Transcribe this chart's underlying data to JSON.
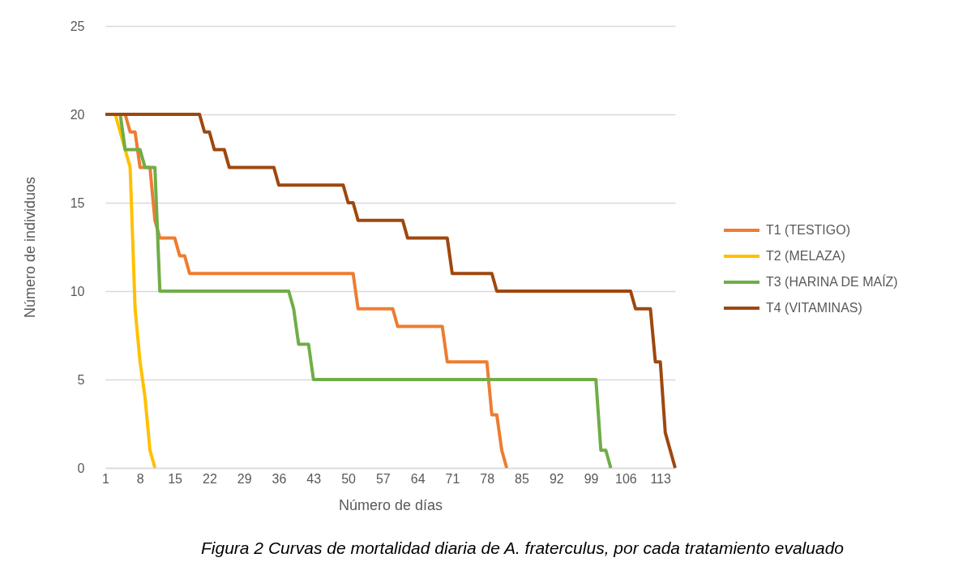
{
  "chart_data": {
    "type": "line",
    "xlabel": "Número de días",
    "ylabel": "Número de individuos",
    "xlim": [
      1,
      116
    ],
    "xticks": [
      1,
      8,
      15,
      22,
      29,
      36,
      43,
      50,
      57,
      64,
      71,
      78,
      85,
      92,
      99,
      106,
      113
    ],
    "ylim": [
      0,
      25
    ],
    "yticks": [
      0,
      5,
      10,
      15,
      20,
      25
    ],
    "grid": "y",
    "legend": "right",
    "annotations": [
      "Figura 2 Curvas de mortalidad diaria de A. fraterculus, por cada tratamiento evaluado"
    ],
    "series": [
      {
        "name": "T1 (TESTIGO)",
        "color": "#ed7d31",
        "x": [
          1,
          5,
          6,
          7,
          8,
          10,
          11,
          12,
          15,
          16,
          17,
          18,
          51,
          52,
          59,
          60,
          69,
          70,
          78,
          79,
          80,
          81,
          82
        ],
        "values": [
          20,
          20,
          19,
          19,
          17,
          17,
          14,
          13,
          13,
          12,
          12,
          11,
          11,
          9,
          9,
          8,
          8,
          6,
          6,
          3,
          3,
          1,
          0
        ]
      },
      {
        "name": "T2 (MELAZA)",
        "color": "#ffc000",
        "x": [
          1,
          3,
          4,
          5,
          6,
          7,
          8,
          9,
          10,
          11
        ],
        "values": [
          20,
          20,
          19,
          18,
          17,
          9,
          6,
          4,
          1,
          0
        ]
      },
      {
        "name": "T3 (HARINA DE MAÍZ)",
        "color": "#70ad47",
        "x": [
          1,
          4,
          5,
          8,
          9,
          11,
          12,
          38,
          39,
          40,
          42,
          43,
          100,
          101,
          102,
          103
        ],
        "values": [
          20,
          20,
          18,
          18,
          17,
          17,
          10,
          10,
          9,
          7,
          7,
          5,
          5,
          1,
          1,
          0
        ]
      },
      {
        "name": "T4 (VITAMINAS)",
        "color": "#9e480e",
        "x": [
          1,
          20,
          21,
          22,
          23,
          25,
          26,
          35,
          36,
          49,
          50,
          51,
          52,
          61,
          62,
          70,
          71,
          79,
          80,
          107,
          108,
          111,
          112,
          113,
          114,
          116
        ],
        "values": [
          20,
          20,
          19,
          19,
          18,
          18,
          17,
          17,
          16,
          16,
          15,
          15,
          14,
          14,
          13,
          13,
          11,
          11,
          10,
          10,
          9,
          9,
          6,
          6,
          2,
          0
        ]
      }
    ]
  }
}
